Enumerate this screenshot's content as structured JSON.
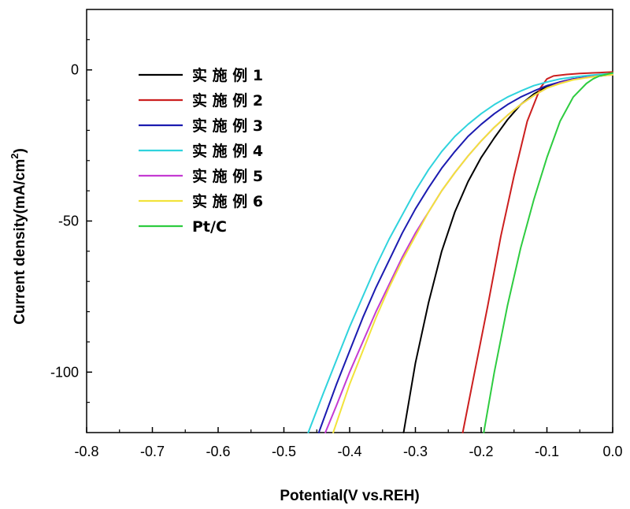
{
  "chart_data": {
    "type": "line",
    "xlabel": "Potential(V vs.REH)",
    "ylabel": "Current density(mA/cm",
    "ylabel_sup": "2",
    "ylabel_suffix": ")",
    "xlim": [
      -0.8,
      0.0
    ],
    "ylim": [
      -120,
      20
    ],
    "xticks": [
      -0.8,
      -0.7,
      -0.6,
      -0.5,
      -0.4,
      -0.3,
      -0.2,
      -0.1,
      0.0
    ],
    "xtick_labels": [
      "-0.8",
      "-0.7",
      "-0.6",
      "-0.5",
      "-0.4",
      "-0.3",
      "-0.2",
      "-0.1",
      "0.0"
    ],
    "yticks": [
      0,
      -50,
      -100
    ],
    "ytick_labels": [
      "0",
      "-50",
      "-100"
    ],
    "grid": false,
    "legend_position": "top-left",
    "series": [
      {
        "name": "实 施 例 1",
        "color": "#000000",
        "x": [
          -0.318,
          -0.3,
          -0.28,
          -0.26,
          -0.24,
          -0.22,
          -0.2,
          -0.18,
          -0.16,
          -0.14,
          -0.12,
          -0.1,
          -0.08,
          -0.06,
          -0.04,
          -0.02,
          0.0
        ],
        "y": [
          -120,
          -97,
          -77,
          -60,
          -47,
          -37,
          -29,
          -22.5,
          -16.5,
          -11.5,
          -8,
          -5.5,
          -4,
          -3,
          -2.5,
          -2,
          -1.5
        ]
      },
      {
        "name": "实 施 例 2",
        "color": "#cc1f1f",
        "x": [
          -0.228,
          -0.21,
          -0.19,
          -0.17,
          -0.15,
          -0.13,
          -0.11,
          -0.1,
          -0.09,
          -0.07,
          -0.05,
          -0.03,
          -0.01,
          0.0
        ],
        "y": [
          -120,
          -100,
          -78,
          -55,
          -35,
          -17,
          -6,
          -3,
          -2,
          -1.5,
          -1.2,
          -1,
          -0.8,
          -0.7
        ]
      },
      {
        "name": "实 施 例 3",
        "color": "#1b1bb0",
        "x": [
          -0.447,
          -0.42,
          -0.4,
          -0.38,
          -0.36,
          -0.34,
          -0.32,
          -0.3,
          -0.28,
          -0.26,
          -0.24,
          -0.22,
          -0.2,
          -0.18,
          -0.16,
          -0.14,
          -0.12,
          -0.1,
          -0.08,
          -0.06,
          -0.04,
          -0.02,
          0.0
        ],
        "y": [
          -120,
          -104,
          -93,
          -82,
          -72,
          -63,
          -54,
          -46,
          -39,
          -32.5,
          -27,
          -22,
          -18,
          -14.5,
          -11.5,
          -9,
          -7,
          -5.2,
          -4,
          -3,
          -2.4,
          -1.9,
          -1.5
        ]
      },
      {
        "name": "实 施 例 4",
        "color": "#2fd3dd",
        "x": [
          -0.463,
          -0.44,
          -0.42,
          -0.4,
          -0.38,
          -0.36,
          -0.34,
          -0.32,
          -0.3,
          -0.28,
          -0.26,
          -0.24,
          -0.22,
          -0.2,
          -0.18,
          -0.16,
          -0.14,
          -0.12,
          -0.1,
          -0.08,
          -0.06,
          -0.04,
          -0.02,
          0.0
        ],
        "y": [
          -120,
          -107,
          -96,
          -85,
          -75,
          -65,
          -56,
          -48,
          -40,
          -33,
          -27,
          -22,
          -18,
          -14.5,
          -11.5,
          -9,
          -7,
          -5.2,
          -4,
          -3,
          -2.4,
          -1.9,
          -1.5,
          -1.2
        ]
      },
      {
        "name": "实 施 例 5",
        "color": "#c43bd3",
        "x": [
          -0.437,
          -0.42,
          -0.4,
          -0.38,
          -0.36,
          -0.34,
          -0.32,
          -0.3,
          -0.28,
          -0.26,
          -0.24,
          -0.22,
          -0.2,
          -0.18,
          -0.16,
          -0.14,
          -0.12,
          -0.1,
          -0.08,
          -0.06,
          -0.04,
          -0.02,
          0.0
        ],
        "y": [
          -120,
          -111,
          -100,
          -90,
          -80,
          -71,
          -62,
          -54,
          -47,
          -40,
          -34,
          -28.5,
          -23.5,
          -19,
          -15,
          -11.5,
          -8.5,
          -6,
          -4.3,
          -3.2,
          -2.5,
          -2,
          -1.6
        ]
      },
      {
        "name": "实 施 例 6",
        "color": "#f2e33b",
        "x": [
          -0.425,
          -0.4,
          -0.38,
          -0.36,
          -0.34,
          -0.32,
          -0.3,
          -0.28,
          -0.26,
          -0.24,
          -0.22,
          -0.2,
          -0.18,
          -0.16,
          -0.14,
          -0.12,
          -0.1,
          -0.08,
          -0.06,
          -0.04,
          -0.02,
          0.0
        ],
        "y": [
          -120,
          -104,
          -93,
          -82,
          -72,
          -63,
          -55,
          -47,
          -40,
          -34,
          -28.5,
          -23.5,
          -19,
          -15,
          -11.5,
          -8.5,
          -6,
          -4.5,
          -3.3,
          -2.6,
          -2,
          -1.6
        ]
      },
      {
        "name": "Pt/C",
        "color": "#2ecc40",
        "x": [
          -0.196,
          -0.18,
          -0.16,
          -0.14,
          -0.12,
          -0.1,
          -0.08,
          -0.06,
          -0.04,
          -0.03,
          -0.02,
          -0.01,
          0.0
        ],
        "y": [
          -120,
          -100,
          -78,
          -59,
          -43,
          -29,
          -17,
          -9,
          -4.5,
          -3,
          -2,
          -1.5,
          -1
        ]
      }
    ]
  }
}
